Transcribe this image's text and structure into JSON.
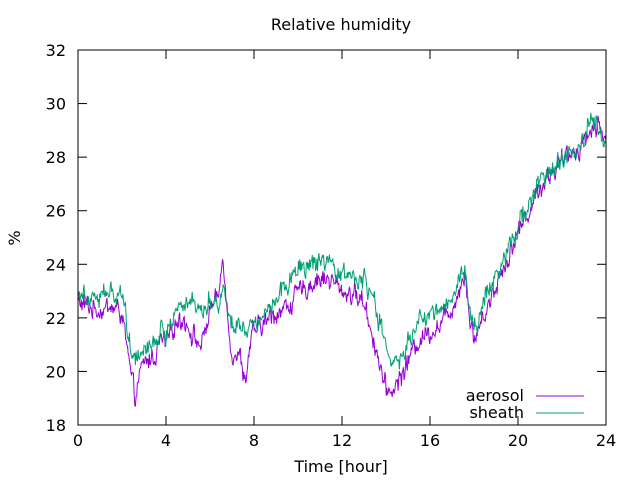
{
  "chart_data": {
    "type": "line",
    "title": "Relative humidity",
    "xlabel": "Time [hour]",
    "ylabel": "%",
    "xlim": [
      0,
      24
    ],
    "ylim": [
      18,
      32
    ],
    "xticks": [
      0,
      4,
      8,
      12,
      16,
      20,
      24
    ],
    "yticks": [
      18,
      20,
      22,
      24,
      26,
      28,
      30,
      32
    ],
    "grid": false,
    "legend_position": "bottom-right",
    "series": [
      {
        "name": "aerosol",
        "color": "#9400d3",
        "x": [
          0,
          0.5,
          1,
          1.5,
          2,
          2.2,
          2.4,
          2.6,
          2.8,
          3,
          3.5,
          3.8,
          4,
          4.4,
          4.8,
          5.2,
          5.6,
          6,
          6.4,
          6.6,
          6.8,
          7,
          7.4,
          7.6,
          7.8,
          8,
          8.5,
          9,
          9.5,
          10,
          10.5,
          11,
          11.5,
          12,
          12.5,
          13,
          13.5,
          13.8,
          14,
          14.4,
          14.8,
          15,
          15.5,
          16,
          16.5,
          17,
          17.4,
          17.6,
          17.8,
          18,
          18.5,
          19,
          19.5,
          20,
          20.5,
          21,
          21.5,
          22,
          22.5,
          23,
          23.3,
          23.6,
          24
        ],
        "values": [
          22.6,
          22.4,
          22.3,
          22.4,
          22.2,
          21.0,
          19.8,
          19.0,
          19.8,
          20.3,
          20.6,
          21.2,
          21.0,
          21.8,
          22.0,
          21.4,
          20.9,
          22.3,
          22.8,
          24.5,
          22.0,
          20.7,
          20.5,
          19.6,
          20.9,
          21.5,
          21.8,
          22.2,
          22.4,
          22.9,
          23.2,
          23.5,
          23.4,
          23.0,
          22.9,
          22.6,
          21.0,
          20.0,
          19.2,
          19.4,
          20.0,
          20.4,
          21.2,
          21.5,
          21.8,
          22.4,
          23.2,
          23.8,
          22.0,
          21.2,
          22.2,
          23.2,
          24.2,
          25.2,
          26.0,
          26.9,
          27.4,
          27.8,
          28.2,
          28.6,
          29.0,
          29.2,
          28.8
        ]
      },
      {
        "name": "sheath",
        "color": "#009e73",
        "x": [
          0,
          0.5,
          1,
          1.5,
          2,
          2.2,
          2.4,
          2.6,
          2.8,
          3,
          3.5,
          3.8,
          4,
          4.4,
          4.8,
          5.2,
          5.6,
          6,
          6.4,
          6.6,
          6.8,
          7,
          7.4,
          7.6,
          7.8,
          8,
          8.5,
          9,
          9.5,
          10,
          10.5,
          11,
          11.5,
          12,
          12.5,
          13,
          13.5,
          13.8,
          14,
          14.4,
          14.8,
          15,
          15.5,
          16,
          16.5,
          17,
          17.4,
          17.6,
          17.8,
          18,
          18.5,
          19,
          19.5,
          20,
          20.5,
          21,
          21.5,
          22,
          22.5,
          23,
          23.3,
          23.6,
          24
        ],
        "values": [
          23.0,
          22.9,
          22.8,
          22.9,
          23.0,
          22.0,
          20.8,
          20.6,
          20.7,
          21.0,
          21.1,
          21.6,
          21.4,
          22.2,
          22.6,
          22.7,
          22.2,
          22.8,
          22.4,
          23.4,
          22.2,
          21.8,
          21.7,
          21.8,
          21.6,
          21.9,
          22.2,
          22.8,
          23.3,
          23.7,
          24.0,
          24.0,
          23.8,
          23.6,
          23.6,
          23.3,
          22.6,
          21.5,
          20.8,
          20.2,
          20.6,
          21.1,
          21.8,
          22.1,
          22.4,
          22.8,
          23.5,
          23.9,
          22.1,
          21.6,
          22.7,
          23.7,
          24.5,
          25.5,
          26.3,
          27.1,
          27.5,
          27.8,
          28.3,
          28.7,
          29.7,
          29.0,
          28.6
        ]
      }
    ]
  }
}
